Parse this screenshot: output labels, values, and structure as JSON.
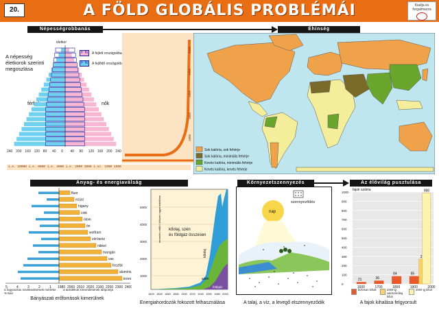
{
  "header": {
    "number": "20.",
    "title": "A FÖLD GLOBÁLIS PROBLÉMÁI",
    "publisher": "Kiadja és forgalmazza"
  },
  "sections": {
    "population": "Népességrobbanás",
    "hunger": "Éhínség",
    "resources": "Anyag- és energiaválság",
    "pollution": "Környezetszennyezés",
    "species": "Az élővilág pusztulása"
  },
  "pyramid": {
    "label": "A népesség életkorok szerinti megoszlása",
    "top_label": "életkor",
    "legend_developed": "A fejlett országokban",
    "legend_developing": "A fejlődő országokban",
    "legend_fn": "F N",
    "male": "férfiak",
    "female": "nők",
    "axis_ticks": [
      "240",
      "200",
      "160",
      "120",
      "80",
      "40",
      "0",
      "40",
      "80",
      "120",
      "160",
      "200",
      "240"
    ],
    "colors": {
      "developing": "#6fd0f0",
      "developed": "#f7b6d2",
      "outline": "#1a1a9a"
    }
  },
  "timeline": {
    "years": [
      "2000",
      "1950",
      "1900",
      "1850",
      "1800"
    ],
    "bottom_text": "i.e. 10000 i.e. 6000 i.e. 4000 i.e. 2000   1000 i.sz. 1000   1500",
    "color": "#e96d12"
  },
  "hunger_map": {
    "legend": [
      {
        "label": "Sok kalória, sok fehérje",
        "color": "#f0a24a"
      },
      {
        "label": "Sok kalória, minimális fehérje",
        "color": "#7a6a2a"
      },
      {
        "label": "Kevés kalória, minimális fehérje",
        "color": "#6aa52d"
      },
      {
        "label": "Kevés kalória, kevés fehérje",
        "color": "#f4ee9a"
      }
    ],
    "ocean_color": "#bfe6ee"
  },
  "resources": {
    "minerals": [
      "fluor",
      "ezüst",
      "higany",
      "cink",
      "ólom",
      "ón",
      "wolfram",
      "vörösréz",
      "nikkel",
      "mangán",
      "vas",
      "foszfát",
      "alumínium",
      "króm"
    ],
    "axis_left": [
      "5",
      "4",
      "3",
      "2",
      "1"
    ],
    "axis_right": [
      "1980",
      "2000",
      "2010",
      "2020",
      "2100",
      "2200",
      "2300",
      "2400"
    ],
    "note_left": "a fogyasztás növekedésének mértéke %-ban",
    "note_right": "a tartalékok kimerülésének időpontja",
    "caption": "Bányászati erőforrások kimerülnek"
  },
  "energy": {
    "ylabel": "termelés millió t kőszén egyenértékben",
    "yticks": [
      "5000",
      "4000",
      "3000",
      "2000",
      "1000"
    ],
    "xticks": [
      "1820",
      "1840",
      "1860",
      "1880",
      "1900",
      "1920",
      "1940",
      "1960",
      "1980",
      "2000"
    ],
    "annotation": "kőolaj, szén és földgáz összesen",
    "labels": {
      "oil": "kőolaj",
      "coal": "szén",
      "gas": "földgáz"
    },
    "caption": "Energiahordozók fokozott felhasználása"
  },
  "pollution": {
    "legend": "szennyeződés",
    "sun": "nap",
    "caption": "A talaj, a víz, a levegő elszennyeződik"
  },
  "species": {
    "chart_data": {
      "type": "bar",
      "ylabel": "fajok száma",
      "ylim": [
        0,
        1000
      ],
      "yticks": [
        "1000",
        "900",
        "800",
        "700",
        "600",
        "500",
        "400",
        "300",
        "200",
        "100",
        "0"
      ],
      "categories": [
        "1600",
        "1700",
        "1800",
        "1900",
        "2000 év"
      ],
      "values": [
        {
          "x": 1600,
          "value": 21,
          "label": "21"
        },
        {
          "x": 1700,
          "value": 36,
          "label": "36"
        },
        {
          "x": 1800,
          "value": 84,
          "label": "84"
        },
        {
          "x": 1900,
          "value": 85,
          "label": "85"
        },
        {
          "x": 1950,
          "value": 270,
          "label": "270"
        },
        {
          "x": 1970,
          "value": 988,
          "label": "988"
        }
      ]
    },
    "legend": [
      {
        "label": "biztosan kihalt",
        "color": "#e95a2a"
      },
      {
        "label": "2000-ig valószínűleg kihal",
        "color": "#f7d36a"
      },
      {
        "label": "2000-ig kihal",
        "color": "#fff3b0"
      }
    ],
    "caption": "A fajok kihalása felgyorsult"
  }
}
